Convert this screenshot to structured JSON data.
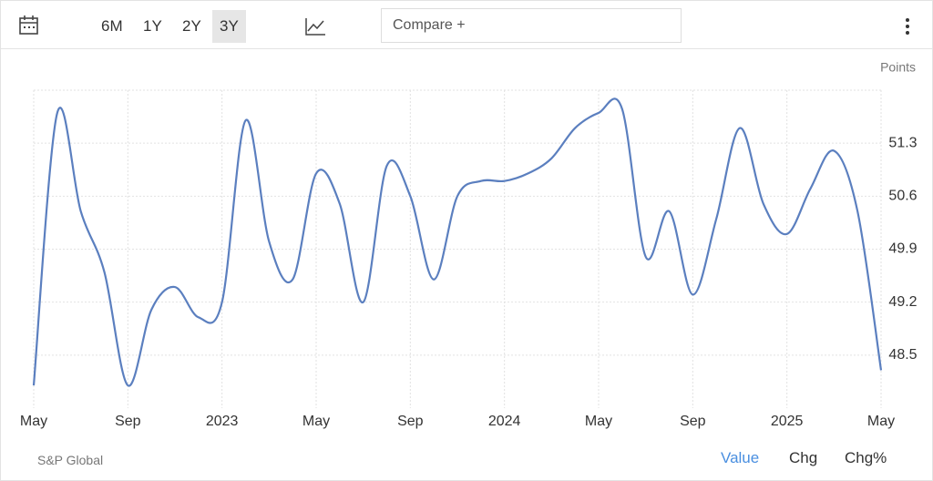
{
  "toolbar": {
    "ranges": [
      "6M",
      "1Y",
      "2Y",
      "3Y"
    ],
    "selected_range": 3,
    "compare": "Compare +"
  },
  "chart_data": {
    "type": "line",
    "unit_label": "Points",
    "categories": [
      "May",
      null,
      null,
      null,
      "Sep",
      null,
      null,
      null,
      "2023",
      null,
      null,
      null,
      "May",
      null,
      null,
      null,
      "Sep",
      null,
      null,
      null,
      "2024",
      null,
      null,
      null,
      "May",
      null,
      null,
      null,
      "Sep",
      null,
      null,
      null,
      "2025",
      null,
      null,
      null,
      "May"
    ],
    "series": [
      {
        "color": "#5b7fbf",
        "values": [
          48.1,
          51.7,
          50.4,
          49.6,
          48.1,
          49.1,
          49.4,
          49.0,
          49.2,
          51.6,
          50.0,
          49.5,
          50.9,
          50.5,
          49.2,
          51.0,
          50.6,
          49.5,
          50.6,
          50.8,
          50.8,
          50.9,
          51.1,
          51.5,
          51.7,
          51.75,
          49.8,
          50.4,
          49.3,
          50.3,
          51.5,
          50.5,
          50.1,
          50.7,
          51.2,
          50.4,
          48.3
        ]
      }
    ],
    "ylim": [
      47.8,
      52.0
    ],
    "yticks": [
      48.5,
      49.2,
      49.9,
      50.6,
      51.3
    ],
    "grid": true,
    "y_axis_side": "right"
  },
  "footer": {
    "source": "S&P Global",
    "tabs": [
      "Value",
      "Chg",
      "Chg%"
    ],
    "selected_tab": 0
  }
}
